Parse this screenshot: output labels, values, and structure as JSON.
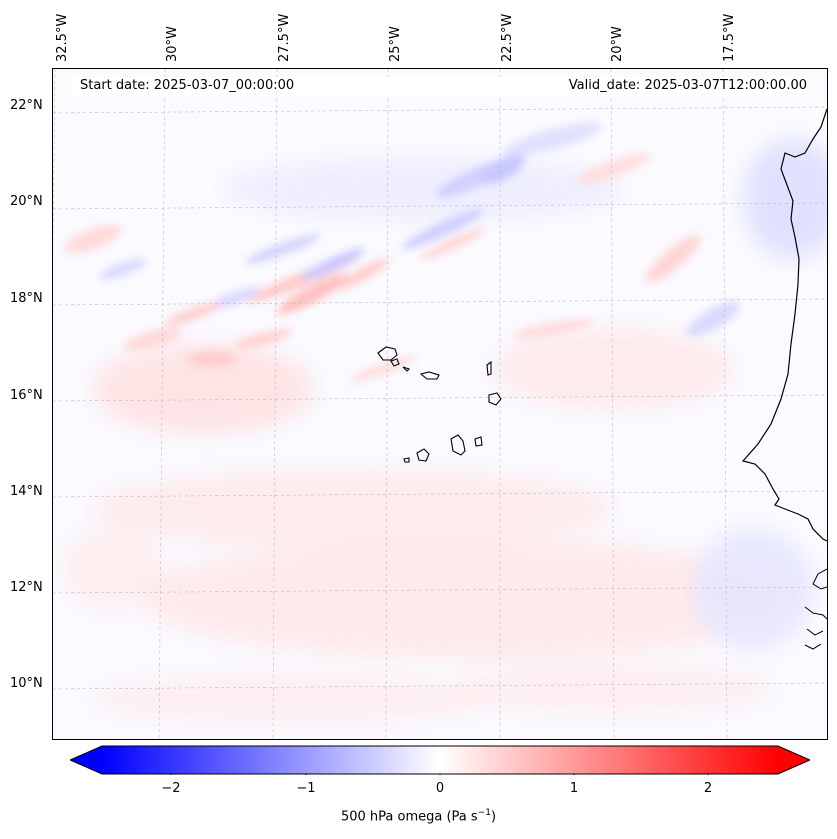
{
  "map": {
    "start_date": "Start date: 2025-03-07_00:00:00",
    "valid_date": "Valid_date: 2025-03-07T12:00:00.00",
    "longitude_labels": [
      "32.5°W",
      "30°W",
      "27.5°W",
      "25°W",
      "22.5°W",
      "20°W",
      "17.5°W"
    ],
    "latitude_labels": [
      "22°N",
      "20°N",
      "18°N",
      "16°N",
      "14°N",
      "12°N",
      "10°N"
    ],
    "variable": "500 hPa omega",
    "colorbar": {
      "label_prefix": "500 hPa omega (Pa s",
      "label_exp": "−1",
      "label_suffix": ")",
      "ticks": [
        "−2",
        "−1",
        "0",
        "1",
        "2"
      ],
      "range": [
        -2.5,
        2.5
      ],
      "colormap": "bwr",
      "low_color": "#0000ff",
      "mid_color": "#ffffff",
      "high_color": "#ff0000"
    },
    "region_features": [
      "Cape Verde islands",
      "West African coastline"
    ]
  }
}
